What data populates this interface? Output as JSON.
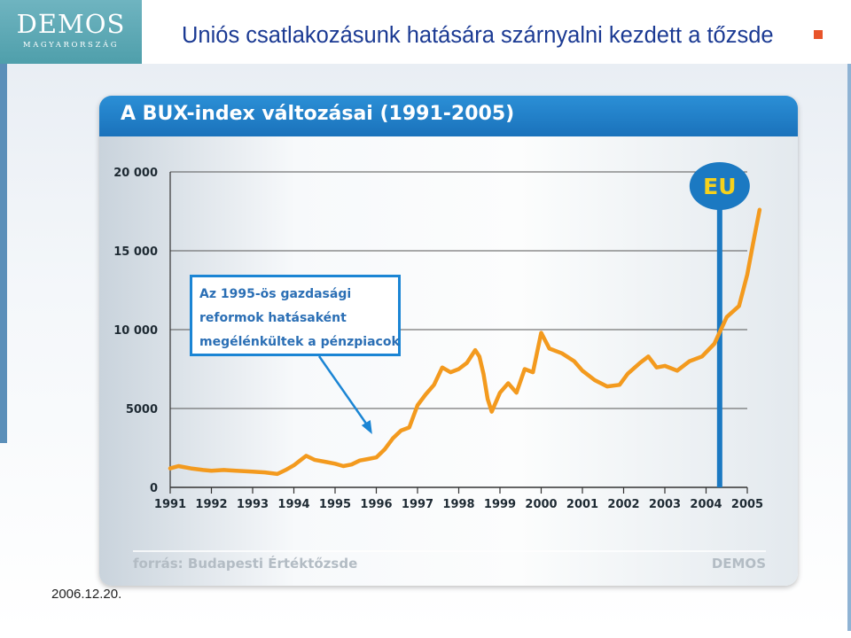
{
  "slide": {
    "logo_word": "DEMOS",
    "logo_sub": "MAGYARORSZÁG",
    "title": "Uniós csatlakozásunk hatására szárnyalni kezdett a tőzsde",
    "date": "2006.12.20."
  },
  "colors": {
    "title_text": "#1b3a93",
    "header_blue": "#1a72bb",
    "line_orange": "#f39a1e",
    "eu_marker": "#1b79c2",
    "bullet": "#e8542a"
  },
  "chart_data": {
    "type": "line",
    "title": "A BUX-index változásai (1991-2005)",
    "xlabel": "",
    "ylabel": "",
    "x_ticks": [
      "1991",
      "1992",
      "1993",
      "1994",
      "1995",
      "1996",
      "1997",
      "1998",
      "1999",
      "2000",
      "2001",
      "2002",
      "2003",
      "2004",
      "2005"
    ],
    "y_ticks": [
      "0",
      "5000",
      "10 000",
      "15 000",
      "20 000"
    ],
    "xlim": [
      1991,
      2005.3
    ],
    "ylim": [
      0,
      20000
    ],
    "grid": true,
    "marker_label": "EU",
    "marker_x": 2004.33,
    "annotation": [
      "Az 1995-ös gazdasági",
      "reformok hatásaként",
      "megélénkültek a pénzpiacok"
    ],
    "annotation_arrow_to_x": 1995.9,
    "series": [
      {
        "points": [
          [
            1991.0,
            1200
          ],
          [
            1991.2,
            1350
          ],
          [
            1991.5,
            1200
          ],
          [
            1991.8,
            1100
          ],
          [
            1992.0,
            1050
          ],
          [
            1992.3,
            1100
          ],
          [
            1992.6,
            1050
          ],
          [
            1993.0,
            1000
          ],
          [
            1993.3,
            950
          ],
          [
            1993.6,
            850
          ],
          [
            1993.8,
            1100
          ],
          [
            1994.0,
            1400
          ],
          [
            1994.15,
            1700
          ],
          [
            1994.3,
            2000
          ],
          [
            1994.5,
            1750
          ],
          [
            1994.8,
            1600
          ],
          [
            1995.0,
            1500
          ],
          [
            1995.2,
            1350
          ],
          [
            1995.4,
            1450
          ],
          [
            1995.6,
            1700
          ],
          [
            1995.8,
            1800
          ],
          [
            1996.0,
            1900
          ],
          [
            1996.2,
            2400
          ],
          [
            1996.4,
            3100
          ],
          [
            1996.6,
            3600
          ],
          [
            1996.8,
            3800
          ],
          [
            1997.0,
            5200
          ],
          [
            1997.2,
            5900
          ],
          [
            1997.4,
            6500
          ],
          [
            1997.6,
            7600
          ],
          [
            1997.8,
            7300
          ],
          [
            1998.0,
            7500
          ],
          [
            1998.2,
            7900
          ],
          [
            1998.4,
            8700
          ],
          [
            1998.5,
            8300
          ],
          [
            1998.6,
            7200
          ],
          [
            1998.7,
            5600
          ],
          [
            1998.8,
            4800
          ],
          [
            1999.0,
            6000
          ],
          [
            1999.2,
            6600
          ],
          [
            1999.4,
            6000
          ],
          [
            1999.6,
            7500
          ],
          [
            1999.8,
            7300
          ],
          [
            2000.0,
            9800
          ],
          [
            2000.2,
            8800
          ],
          [
            2000.5,
            8500
          ],
          [
            2000.8,
            8000
          ],
          [
            2001.0,
            7400
          ],
          [
            2001.3,
            6800
          ],
          [
            2001.6,
            6400
          ],
          [
            2001.9,
            6500
          ],
          [
            2002.1,
            7200
          ],
          [
            2002.4,
            7900
          ],
          [
            2002.6,
            8300
          ],
          [
            2002.8,
            7600
          ],
          [
            2003.0,
            7700
          ],
          [
            2003.3,
            7400
          ],
          [
            2003.6,
            8000
          ],
          [
            2003.9,
            8300
          ],
          [
            2004.2,
            9100
          ],
          [
            2004.5,
            10800
          ],
          [
            2004.8,
            11500
          ],
          [
            2005.0,
            13500
          ],
          [
            2005.15,
            15600
          ],
          [
            2005.3,
            17600
          ]
        ]
      }
    ],
    "source": "forrás: Budapesti Értéktőzsde",
    "watermark": "DEMOS"
  }
}
